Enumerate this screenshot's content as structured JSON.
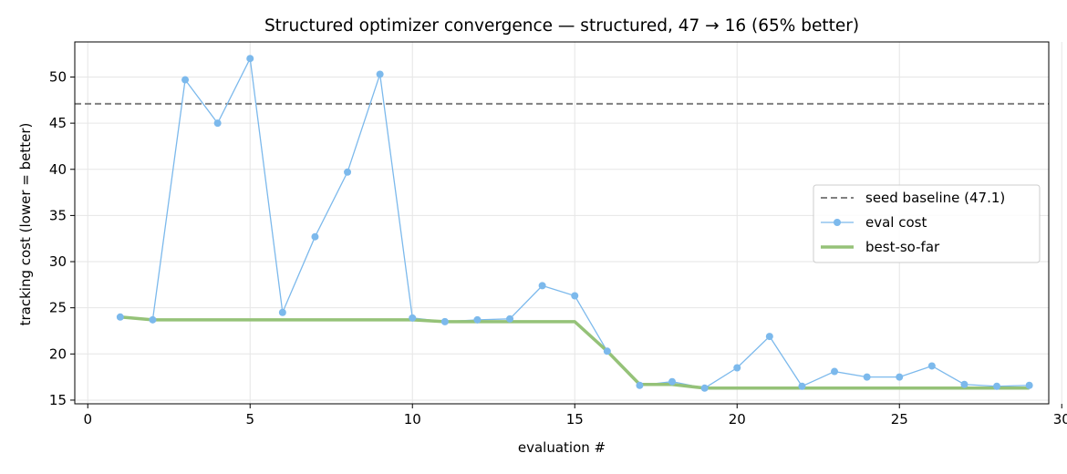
{
  "chart_data": {
    "type": "line",
    "title": "Structured optimizer convergence — structured, 47 → 16 (65% better)",
    "xlabel": "evaluation #",
    "ylabel": "tracking cost (lower = better)",
    "xlim": [
      -0.4,
      29.6
    ],
    "ylim": [
      14.6,
      53.8
    ],
    "xticks": [
      0,
      5,
      10,
      15,
      20,
      25,
      30
    ],
    "yticks": [
      15,
      20,
      25,
      30,
      35,
      40,
      45,
      50
    ],
    "grid": true,
    "legend_position": "center-right",
    "baseline": {
      "name": "seed baseline (47.1)",
      "value": 47.1,
      "color": "#808080"
    },
    "x": [
      1,
      2,
      3,
      4,
      5,
      6,
      7,
      8,
      9,
      10,
      11,
      12,
      13,
      14,
      15,
      16,
      17,
      18,
      19,
      20,
      21,
      22,
      23,
      24,
      25,
      26,
      27,
      28,
      29
    ],
    "series": [
      {
        "name": "eval cost",
        "color": "#7cb9ec",
        "values": [
          24.0,
          23.7,
          49.7,
          45.0,
          52.0,
          24.5,
          32.7,
          39.7,
          50.3,
          23.9,
          23.5,
          23.7,
          23.8,
          27.4,
          26.3,
          20.3,
          16.6,
          17.0,
          16.3,
          18.5,
          21.9,
          16.5,
          18.1,
          17.5,
          17.5,
          18.7,
          16.7,
          16.5,
          16.6
        ]
      },
      {
        "name": "best-so-far",
        "color": "#95c278",
        "values": [
          24.0,
          23.7,
          23.7,
          23.7,
          23.7,
          23.7,
          23.7,
          23.7,
          23.7,
          23.7,
          23.5,
          23.5,
          23.5,
          23.5,
          23.5,
          20.3,
          16.7,
          16.7,
          16.3,
          16.3,
          16.3,
          16.3,
          16.3,
          16.3,
          16.3,
          16.3,
          16.3,
          16.3,
          16.3
        ]
      }
    ]
  }
}
